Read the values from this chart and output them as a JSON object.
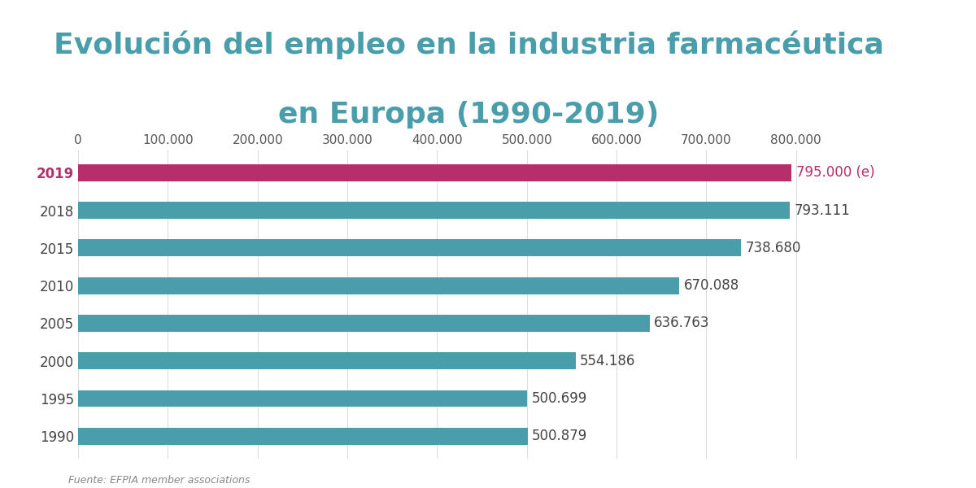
{
  "title_line1": "Evolución del empleo en la industria farmacéutica",
  "title_line2": "en Europa (1990-2019)",
  "title_color": "#4a9eac",
  "title_fontsize": 26,
  "title_fontweight": "bold",
  "categories": [
    "2019",
    "2018",
    "2015",
    "2010",
    "2005",
    "2000",
    "1995",
    "1990"
  ],
  "values": [
    795000,
    793111,
    738680,
    670088,
    636763,
    554186,
    500699,
    500879
  ],
  "labels": [
    "795.000 (e)",
    "793.111",
    "738.680",
    "670.088",
    "636.763",
    "554.186",
    "500.699",
    "500.879"
  ],
  "bar_colors": [
    "#b5306a",
    "#4a9eac",
    "#4a9eac",
    "#4a9eac",
    "#4a9eac",
    "#4a9eac",
    "#4a9eac",
    "#4a9eac"
  ],
  "year_colors": [
    "#b5306a",
    "#444444",
    "#444444",
    "#444444",
    "#444444",
    "#444444",
    "#444444",
    "#444444"
  ],
  "label_colors": [
    "#b5306a",
    "#444444",
    "#444444",
    "#444444",
    "#444444",
    "#444444",
    "#444444",
    "#444444"
  ],
  "xlim": [
    0,
    870000
  ],
  "xticks": [
    0,
    100000,
    200000,
    300000,
    400000,
    500000,
    600000,
    700000,
    800000
  ],
  "xtick_labels": [
    "0",
    "100.000",
    "200.000",
    "300.000",
    "400.000",
    "500.000",
    "600.000",
    "700.000",
    "800.000"
  ],
  "background_color": "#ffffff",
  "source_text": "Fuente: EFPIA member associations",
  "bar_height": 0.45,
  "label_fontsize": 12,
  "tick_fontsize": 11,
  "year_fontsize": 12
}
